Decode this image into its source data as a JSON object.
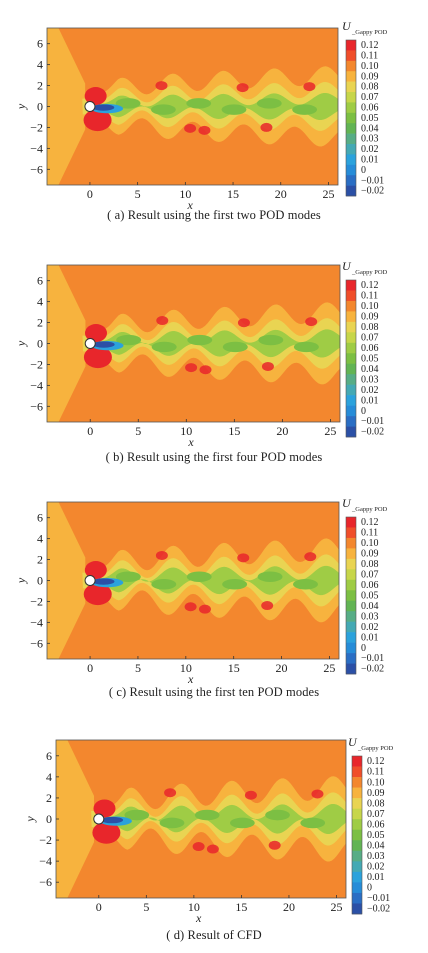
{
  "colorbar": {
    "title": "U",
    "subscript": "_Gappy POD",
    "levels": [
      "0.12",
      "0.11",
      "0.10",
      "0.09",
      "0.08",
      "0.07",
      "0.06",
      "0.05",
      "0.04",
      "0.03",
      "0.02",
      "0.01",
      "0",
      "−0.01",
      "−0.02"
    ],
    "colors": [
      "#e8262b",
      "#f04e2a",
      "#f3872e",
      "#f7b33e",
      "#e9d452",
      "#c7d64a",
      "#9fcc45",
      "#7cbf43",
      "#62b454",
      "#57ad86",
      "#44a9b4",
      "#2ba2dc",
      "#268cd8",
      "#2a6ec4",
      "#2b50a6"
    ]
  },
  "axes": {
    "xlabel": "x",
    "ylabel": "y",
    "xticks": [
      "0",
      "5",
      "10",
      "15",
      "20",
      "25"
    ],
    "yticks": [
      "6",
      "4",
      "2",
      "0",
      "−2",
      "−4",
      "−6"
    ]
  },
  "field_colors": {
    "background": "#f3872e",
    "wake_outer": "#f7b33e",
    "wake_mid": "#e9d452",
    "wake_core": "#9fcc45",
    "wake_inner": "#7cbf43",
    "high": "#e8262b",
    "low": "#2b50a6",
    "low_mid": "#2ba2dc",
    "cylinder": "#ffffff"
  },
  "panels": [
    {
      "caption": "( a)  Result using the first two POD modes"
    },
    {
      "caption": "( b)  Result using the first four POD modes"
    },
    {
      "caption": "( c)  Result using the first ten POD modes"
    },
    {
      "caption": "( d)  Result of CFD"
    }
  ]
}
